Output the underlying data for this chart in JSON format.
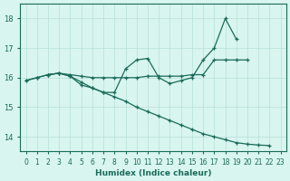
{
  "xlabel": "Humidex (Indice chaleur)",
  "bg_color": "#d8f5ef",
  "grid_color": "#b8e0d8",
  "line_color": "#1a6b5a",
  "xlim": [
    -0.5,
    23.5
  ],
  "ylim": [
    13.5,
    18.5
  ],
  "yticks": [
    14,
    15,
    16,
    17,
    18
  ],
  "xticks": [
    0,
    1,
    2,
    3,
    4,
    5,
    6,
    7,
    8,
    9,
    10,
    11,
    12,
    13,
    14,
    15,
    16,
    17,
    18,
    19,
    20,
    21,
    22,
    23
  ],
  "series": [
    {
      "x": [
        0,
        1,
        2,
        3,
        4,
        5,
        6,
        7,
        8,
        9,
        10,
        11,
        12,
        13,
        14,
        15,
        16,
        17,
        18,
        19,
        20
      ],
      "y": [
        15.9,
        16.0,
        16.1,
        16.15,
        16.1,
        16.05,
        16.0,
        16.0,
        16.0,
        16.0,
        16.0,
        16.05,
        16.05,
        16.05,
        16.05,
        16.1,
        16.1,
        16.6,
        16.6,
        16.6,
        16.6
      ]
    },
    {
      "x": [
        0,
        1,
        2,
        3,
        4,
        5,
        6,
        7,
        8,
        9,
        10,
        11,
        12,
        13,
        14,
        15,
        16,
        17,
        18,
        19
      ],
      "y": [
        15.9,
        16.0,
        16.1,
        16.15,
        16.05,
        15.75,
        15.65,
        15.5,
        15.5,
        16.3,
        16.6,
        16.65,
        16.0,
        15.8,
        15.9,
        16.0,
        16.6,
        17.0,
        18.0,
        17.3
      ]
    },
    {
      "x": [
        2,
        3,
        4,
        5,
        6,
        7,
        8,
        9,
        10,
        11,
        12,
        13,
        14,
        15,
        16,
        17,
        18,
        19,
        20,
        21,
        22
      ],
      "y": [
        16.1,
        16.15,
        16.05,
        15.85,
        15.65,
        15.5,
        15.35,
        15.2,
        15.0,
        14.85,
        14.7,
        14.55,
        14.4,
        14.25,
        14.1,
        14.0,
        13.9,
        13.8,
        13.75,
        13.72,
        13.7
      ]
    }
  ]
}
